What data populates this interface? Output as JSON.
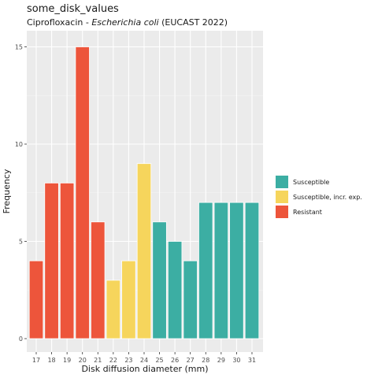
{
  "chart_data": {
    "type": "bar",
    "title": "some_disk_values",
    "subtitle_prefix": "Ciprofloxacin - ",
    "subtitle_italic": "Escherichia coli",
    "subtitle_suffix": " (EUCAST 2022)",
    "xlabel": "Disk diffusion diameter (mm)",
    "ylabel": "Frequency",
    "ylim": [
      0,
      16.5
    ],
    "yticks": [
      0,
      5,
      10,
      15
    ],
    "yticklabels": [
      "0",
      "5",
      "10",
      "15"
    ],
    "grid": true,
    "legend_position": "right",
    "categories": [
      "17",
      "18",
      "19",
      "20",
      "21",
      "22",
      "23",
      "24",
      "25",
      "26",
      "27",
      "28",
      "29",
      "30",
      "31"
    ],
    "values": [
      4,
      8,
      8,
      15,
      6,
      3,
      4,
      9,
      6,
      5,
      4,
      7,
      7,
      7,
      7
    ],
    "interpretation": [
      "R",
      "R",
      "R",
      "R",
      "R",
      "I",
      "I",
      "I",
      "S",
      "S",
      "S",
      "S",
      "S",
      "S",
      "S"
    ],
    "legend": [
      {
        "key": "S",
        "label": "Susceptible",
        "color": "#3CAEA3"
      },
      {
        "key": "I",
        "label": "Susceptible, incr. exp.",
        "color": "#F6D55C"
      },
      {
        "key": "R",
        "label": "Resistant",
        "color": "#ED553B"
      }
    ]
  }
}
